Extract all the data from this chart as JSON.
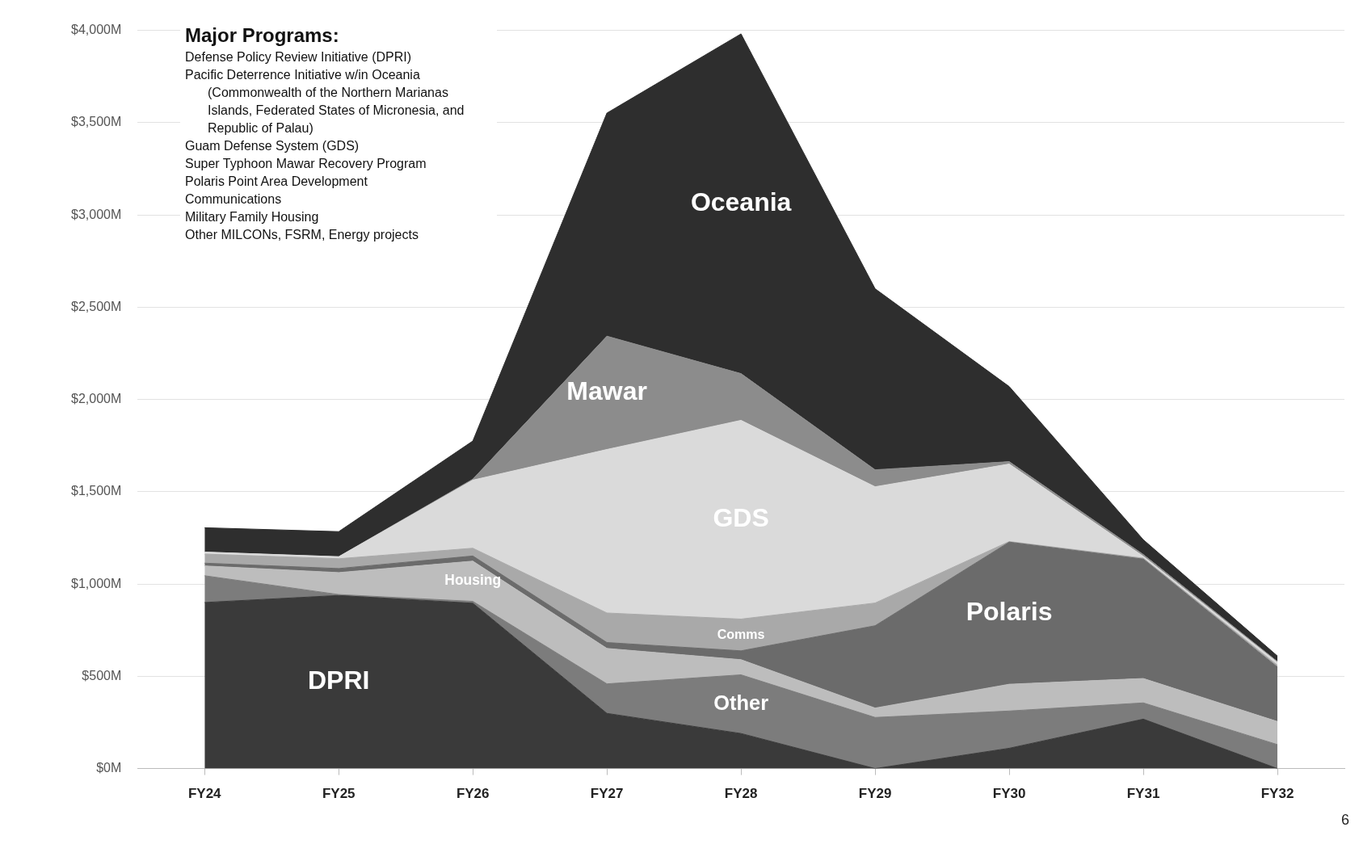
{
  "chart_data": {
    "type": "area",
    "stacked": true,
    "categories": [
      "FY24",
      "FY25",
      "FY26",
      "FY27",
      "FY28",
      "FY29",
      "FY30",
      "FY31",
      "FY32"
    ],
    "series": [
      {
        "name": "DPRI",
        "color": "#3a3a3a",
        "values": [
          900,
          938,
          896,
          299,
          190,
          0,
          110,
          268,
          0
        ]
      },
      {
        "name": "Other",
        "color": "#7c7c7c",
        "values": [
          145,
          5,
          10,
          160,
          318,
          277,
          202,
          88,
          130
        ]
      },
      {
        "name": "Housing",
        "color": "#bdbdbd",
        "values": [
          53,
          119,
          218,
          192,
          82,
          51,
          145,
          132,
          125
        ]
      },
      {
        "name": "Polaris",
        "color": "#6b6b6b",
        "values": [
          15,
          22,
          28,
          32,
          48,
          446,
          770,
          647,
          295
        ]
      },
      {
        "name": "Comms",
        "color": "#a9a9a9",
        "values": [
          49,
          53,
          42,
          160,
          172,
          123,
          3,
          5,
          10
        ]
      },
      {
        "name": "GDS",
        "color": "#dadada",
        "values": [
          11,
          11,
          369,
          886,
          1077,
          630,
          420,
          10,
          15
        ]
      },
      {
        "name": "Mawar",
        "color": "#8c8c8c",
        "values": [
          0,
          0,
          5,
          614,
          253,
          92,
          13,
          10,
          5
        ]
      },
      {
        "name": "Oceania",
        "color": "#2e2e2e",
        "values": [
          132,
          136,
          207,
          1209,
          1841,
          981,
          407,
          80,
          30
        ]
      }
    ],
    "ylim": [
      0,
      4000
    ],
    "yticks": [
      {
        "value": 0,
        "label": "$0M"
      },
      {
        "value": 500,
        "label": "$500M"
      },
      {
        "value": 1000,
        "label": "$1,000M"
      },
      {
        "value": 1500,
        "label": "$1,500M"
      },
      {
        "value": 2000,
        "label": "$2,000M"
      },
      {
        "value": 2500,
        "label": "$2,500M"
      },
      {
        "value": 3000,
        "label": "$3,000M"
      },
      {
        "value": 3500,
        "label": "$3,500M"
      },
      {
        "value": 4000,
        "label": "$4,000M"
      }
    ],
    "grid": "y",
    "legend": false,
    "annotations": [
      "Major Programs:",
      "Defense Policy Review Initiative (DPRI)",
      "Pacific Deterrence Initiative w/in Oceania (Commonwealth of the Northern Marianas Islands, Federated States of Micronesia, and Republic of Palau)",
      "Guam Defense System (GDS)",
      "Super Typhoon Mawar Recovery Program",
      "Polaris Point Area Development",
      "Communications",
      "Military Family Housing",
      "Other MILCONs, FSRM, Energy projects",
      "6"
    ]
  }
}
